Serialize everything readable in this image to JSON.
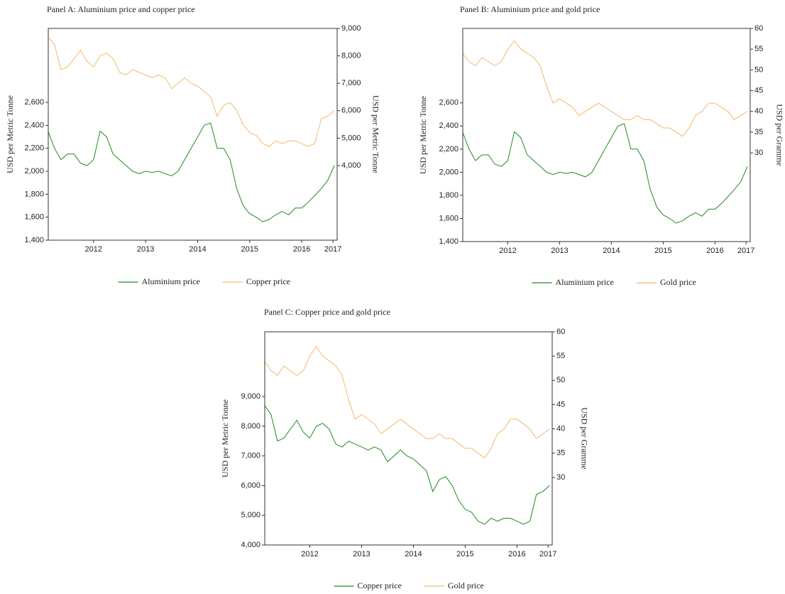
{
  "chart_data": [
    {
      "type": "line",
      "title": "Panel A: Aluminium price and copper price",
      "ylabel": "USD per Metric Tonne",
      "y2label": "USD per Metric Tonne",
      "x": [
        2011.625,
        2011.75,
        2011.875,
        2012.0,
        2012.125,
        2012.25,
        2012.375,
        2012.5,
        2012.625,
        2012.75,
        2012.875,
        2013.0,
        2013.125,
        2013.25,
        2013.375,
        2013.5,
        2013.625,
        2013.75,
        2013.875,
        2014.0,
        2014.125,
        2014.25,
        2014.375,
        2014.5,
        2014.625,
        2014.75,
        2014.875,
        2015.0,
        2015.125,
        2015.25,
        2015.375,
        2015.5,
        2015.625,
        2015.75,
        2015.875,
        2016.0,
        2016.125,
        2016.25,
        2016.375,
        2016.5,
        2016.625,
        2016.75,
        2016.875,
        2017.0,
        2017.125
      ],
      "xlim": [
        2011.63,
        2017.18
      ],
      "xticks": [
        {
          "value": 2012.5,
          "label": "2012"
        },
        {
          "value": 2013.5,
          "label": "2013"
        },
        {
          "value": 2014.5,
          "label": "2014"
        },
        {
          "value": 2015.5,
          "label": "2015"
        },
        {
          "value": 2016.5,
          "label": "2016"
        },
        {
          "value": 2017.1,
          "label": "2017"
        }
      ],
      "ylim": [
        1400,
        3244
      ],
      "yticks": [
        {
          "value": 1400,
          "label": "1,400"
        },
        {
          "value": 1600,
          "label": "1,600"
        },
        {
          "value": 1800,
          "label": "1,800"
        },
        {
          "value": 2000,
          "label": "2,000"
        },
        {
          "value": 2200,
          "label": "2,200"
        },
        {
          "value": 2400,
          "label": "2,400"
        },
        {
          "value": 2600,
          "label": "2,600"
        }
      ],
      "y2lim": [
        1280,
        9000
      ],
      "y2ticks": [
        {
          "value": 4000,
          "label": "4,000"
        },
        {
          "value": 5000,
          "label": "5,000"
        },
        {
          "value": 6000,
          "label": "6,000"
        },
        {
          "value": 7000,
          "label": "7,000"
        },
        {
          "value": 8000,
          "label": "8,000"
        },
        {
          "value": 9000,
          "label": "9,000"
        }
      ],
      "series": [
        {
          "name": "Aluminium price",
          "color": "#1f8a1f",
          "values": [
            2350,
            2200,
            2100,
            2150,
            2150,
            2070,
            2050,
            2100,
            2350,
            2300,
            2150,
            2100,
            2050,
            2000,
            1980,
            2000,
            1990,
            2000,
            1980,
            1960,
            2000,
            2100,
            2200,
            2300,
            2400,
            2420,
            2200,
            2200,
            2100,
            1850,
            1700,
            1630,
            1600,
            1560,
            1580,
            1620,
            1650,
            1620,
            1680,
            1680,
            1730,
            1790,
            1850,
            1920,
            2050
          ]
        },
        {
          "name": "Copper price",
          "color": "#f5b86a",
          "axis": "y2",
          "values": [
            8700,
            8400,
            7500,
            7600,
            7900,
            8200,
            7800,
            7600,
            8000,
            8100,
            7900,
            7400,
            7300,
            7500,
            7400,
            7300,
            7200,
            7300,
            7200,
            6800,
            7000,
            7200,
            7000,
            6900,
            6700,
            6500,
            5800,
            6200,
            6300,
            6000,
            5500,
            5200,
            5100,
            4800,
            4700,
            4900,
            4800,
            4900,
            4900,
            4800,
            4700,
            4800,
            5700,
            5800,
            6000
          ]
        }
      ]
    },
    {
      "type": "line",
      "title": "Panel B: Aluminium price and gold price",
      "ylabel": "USD per Metric Tonne",
      "y2label": "USD per Gramme",
      "x": [
        2011.625,
        2011.75,
        2011.875,
        2012.0,
        2012.125,
        2012.25,
        2012.375,
        2012.5,
        2012.625,
        2012.75,
        2012.875,
        2013.0,
        2013.125,
        2013.25,
        2013.375,
        2013.5,
        2013.625,
        2013.75,
        2013.875,
        2014.0,
        2014.125,
        2014.25,
        2014.375,
        2014.5,
        2014.625,
        2014.75,
        2014.875,
        2015.0,
        2015.125,
        2015.25,
        2015.375,
        2015.5,
        2015.625,
        2015.75,
        2015.875,
        2016.0,
        2016.125,
        2016.25,
        2016.375,
        2016.5,
        2016.625,
        2016.75,
        2016.875,
        2017.0,
        2017.125
      ],
      "xlim": [
        2011.63,
        2017.18
      ],
      "xticks": [
        {
          "value": 2012.5,
          "label": "2012"
        },
        {
          "value": 2013.5,
          "label": "2013"
        },
        {
          "value": 2014.5,
          "label": "2014"
        },
        {
          "value": 2015.5,
          "label": "2015"
        },
        {
          "value": 2016.5,
          "label": "2016"
        },
        {
          "value": 2017.1,
          "label": "2017"
        }
      ],
      "ylim": [
        1400,
        3244
      ],
      "yticks": [
        {
          "value": 1400,
          "label": "1,400"
        },
        {
          "value": 1600,
          "label": "1,600"
        },
        {
          "value": 1800,
          "label": "1,800"
        },
        {
          "value": 2000,
          "label": "2,000"
        },
        {
          "value": 2200,
          "label": "2,200"
        },
        {
          "value": 2400,
          "label": "2,400"
        },
        {
          "value": 2600,
          "label": "2,600"
        }
      ],
      "y2lim": [
        8.6,
        60
      ],
      "y2ticks": [
        30,
        35,
        40,
        45,
        50,
        55,
        60
      ],
      "series": [
        {
          "name": "Aluminium price",
          "color": "#1f8a1f",
          "values": [
            2350,
            2200,
            2100,
            2150,
            2150,
            2070,
            2050,
            2100,
            2350,
            2300,
            2150,
            2100,
            2050,
            2000,
            1980,
            2000,
            1990,
            2000,
            1980,
            1960,
            2000,
            2100,
            2200,
            2300,
            2400,
            2420,
            2200,
            2200,
            2100,
            1850,
            1700,
            1630,
            1600,
            1560,
            1580,
            1620,
            1650,
            1620,
            1680,
            1680,
            1730,
            1790,
            1850,
            1920,
            2050
          ]
        },
        {
          "name": "Gold price",
          "color": "#f5b86a",
          "axis": "y2",
          "values": [
            54,
            52,
            51,
            53,
            52,
            51,
            52,
            55,
            57,
            55,
            54,
            53,
            51,
            46,
            42,
            43,
            42,
            41,
            39,
            40,
            41,
            42,
            41,
            40,
            39,
            38,
            38,
            39,
            38,
            38,
            37,
            36,
            36,
            35,
            34,
            36,
            39,
            40,
            42,
            42,
            41,
            40,
            38,
            39,
            40
          ]
        }
      ]
    },
    {
      "type": "line",
      "title": "Panel C: Copper price and gold price",
      "ylabel": "USD per Metric Tonne",
      "y2label": "USD per Gramme",
      "x": [
        2011.625,
        2011.75,
        2011.875,
        2012.0,
        2012.125,
        2012.25,
        2012.375,
        2012.5,
        2012.625,
        2012.75,
        2012.875,
        2013.0,
        2013.125,
        2013.25,
        2013.375,
        2013.5,
        2013.625,
        2013.75,
        2013.875,
        2014.0,
        2014.125,
        2014.25,
        2014.375,
        2014.5,
        2014.625,
        2014.75,
        2014.875,
        2015.0,
        2015.125,
        2015.25,
        2015.375,
        2015.5,
        2015.625,
        2015.75,
        2015.875,
        2016.0,
        2016.125,
        2016.25,
        2016.375,
        2016.5,
        2016.625,
        2016.75,
        2016.875,
        2017.0,
        2017.125
      ],
      "xlim": [
        2011.63,
        2017.18
      ],
      "xticks": [
        {
          "value": 2012.5,
          "label": "2012"
        },
        {
          "value": 2013.5,
          "label": "2013"
        },
        {
          "value": 2014.5,
          "label": "2014"
        },
        {
          "value": 2015.5,
          "label": "2015"
        },
        {
          "value": 2016.5,
          "label": "2016"
        },
        {
          "value": 2017.1,
          "label": "2017"
        }
      ],
      "ylim": [
        4000,
        11180
      ],
      "yticks": [
        {
          "value": 4000,
          "label": "4,000"
        },
        {
          "value": 5000,
          "label": "5,000"
        },
        {
          "value": 6000,
          "label": "6,000"
        },
        {
          "value": 7000,
          "label": "7,000"
        },
        {
          "value": 8000,
          "label": "8,000"
        },
        {
          "value": 9000,
          "label": "9,000"
        }
      ],
      "y2lim": [
        16.1,
        60
      ],
      "y2ticks": [
        30,
        35,
        40,
        45,
        50,
        55,
        60
      ],
      "series": [
        {
          "name": "Copper price",
          "color": "#1f8a1f",
          "values": [
            8700,
            8400,
            7500,
            7600,
            7900,
            8200,
            7800,
            7600,
            8000,
            8100,
            7900,
            7400,
            7300,
            7500,
            7400,
            7300,
            7200,
            7300,
            7200,
            6800,
            7000,
            7200,
            7000,
            6900,
            6700,
            6500,
            5800,
            6200,
            6300,
            6000,
            5500,
            5200,
            5100,
            4800,
            4700,
            4900,
            4800,
            4900,
            4900,
            4800,
            4700,
            4800,
            5700,
            5800,
            6000
          ]
        },
        {
          "name": "Gold price",
          "color": "#f5b86a",
          "axis": "y2",
          "values": [
            54,
            52,
            51,
            53,
            52,
            51,
            52,
            55,
            57,
            55,
            54,
            53,
            51,
            46,
            42,
            43,
            42,
            41,
            39,
            40,
            41,
            42,
            41,
            40,
            39,
            38,
            38,
            39,
            38,
            38,
            37,
            36,
            36,
            35,
            34,
            36,
            39,
            40,
            42,
            42,
            41,
            40,
            38,
            39,
            40
          ]
        }
      ]
    }
  ]
}
